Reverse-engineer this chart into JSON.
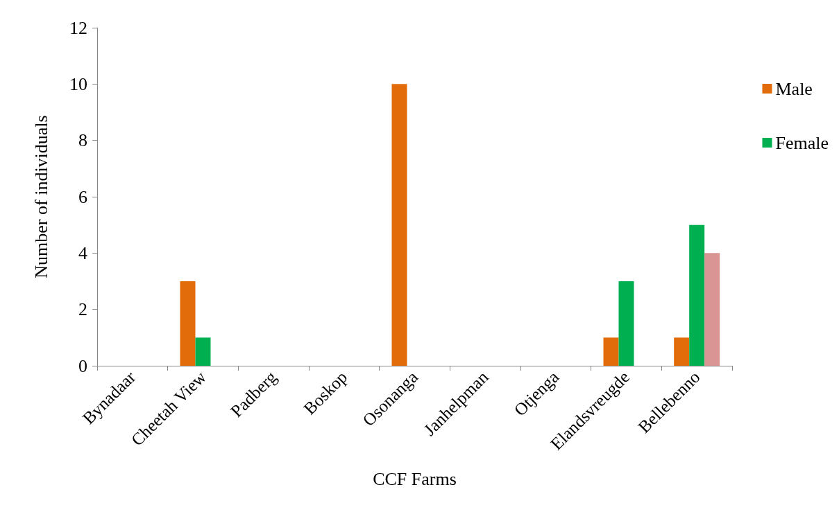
{
  "chart_data": {
    "type": "bar",
    "xlabel": "CCF Farms",
    "ylabel": "Number of individuals",
    "categories": [
      "Bynadaar",
      "Cheetah View",
      "Padberg",
      "Boskop",
      "Osonanga",
      "Janhelpman",
      "Otjenga",
      "Elandsvreugde",
      "Bellebenno"
    ],
    "series": [
      {
        "name": "Male",
        "color": "#e36c0a",
        "values": [
          0,
          3,
          0,
          0,
          10,
          0,
          0,
          1,
          1
        ]
      },
      {
        "name": "Female",
        "color": "#00b050",
        "values": [
          0,
          1,
          0,
          0,
          0,
          0,
          0,
          3,
          5
        ]
      },
      {
        "color": "#d99594",
        "values": [
          0,
          0,
          0,
          0,
          0,
          0,
          0,
          0,
          4
        ]
      }
    ],
    "ylim": [
      0,
      12
    ],
    "yticks": [
      0,
      2,
      4,
      6,
      8,
      10,
      12
    ],
    "grid": false,
    "legend": "right"
  }
}
